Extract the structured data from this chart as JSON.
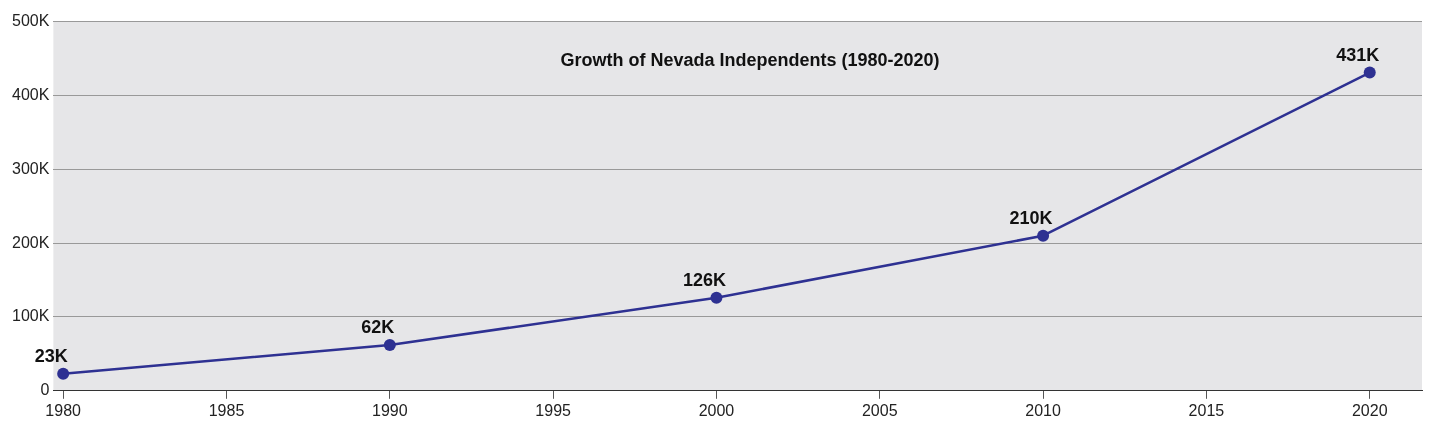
{
  "chart_data": {
    "type": "line",
    "title": "Growth of Nevada Independents (1980-2020)",
    "x": [
      1980,
      1990,
      2000,
      2010,
      2020
    ],
    "series": [
      {
        "color": "#2e3192",
        "values": [
          23000,
          62000,
          126000,
          210000,
          431000
        ],
        "value_labels": [
          "23K",
          "62K",
          "126K",
          "210K",
          "431K"
        ]
      }
    ],
    "xlim": [
      1979.7,
      2021.6
    ],
    "xticks": [
      1980,
      1985,
      1990,
      1995,
      2000,
      2005,
      2010,
      2015,
      2020
    ],
    "ylim": [
      0,
      500000
    ],
    "yticks": [
      {
        "value": 0,
        "label": "0"
      },
      {
        "value": 100000,
        "label": "100K"
      },
      {
        "value": 200000,
        "label": "200K"
      },
      {
        "value": 300000,
        "label": "300K"
      },
      {
        "value": 400000,
        "label": "400K"
      },
      {
        "value": 500000,
        "label": "500K"
      }
    ],
    "grid": "y",
    "marker": "circle",
    "line_style": "solid",
    "legend": false
  }
}
